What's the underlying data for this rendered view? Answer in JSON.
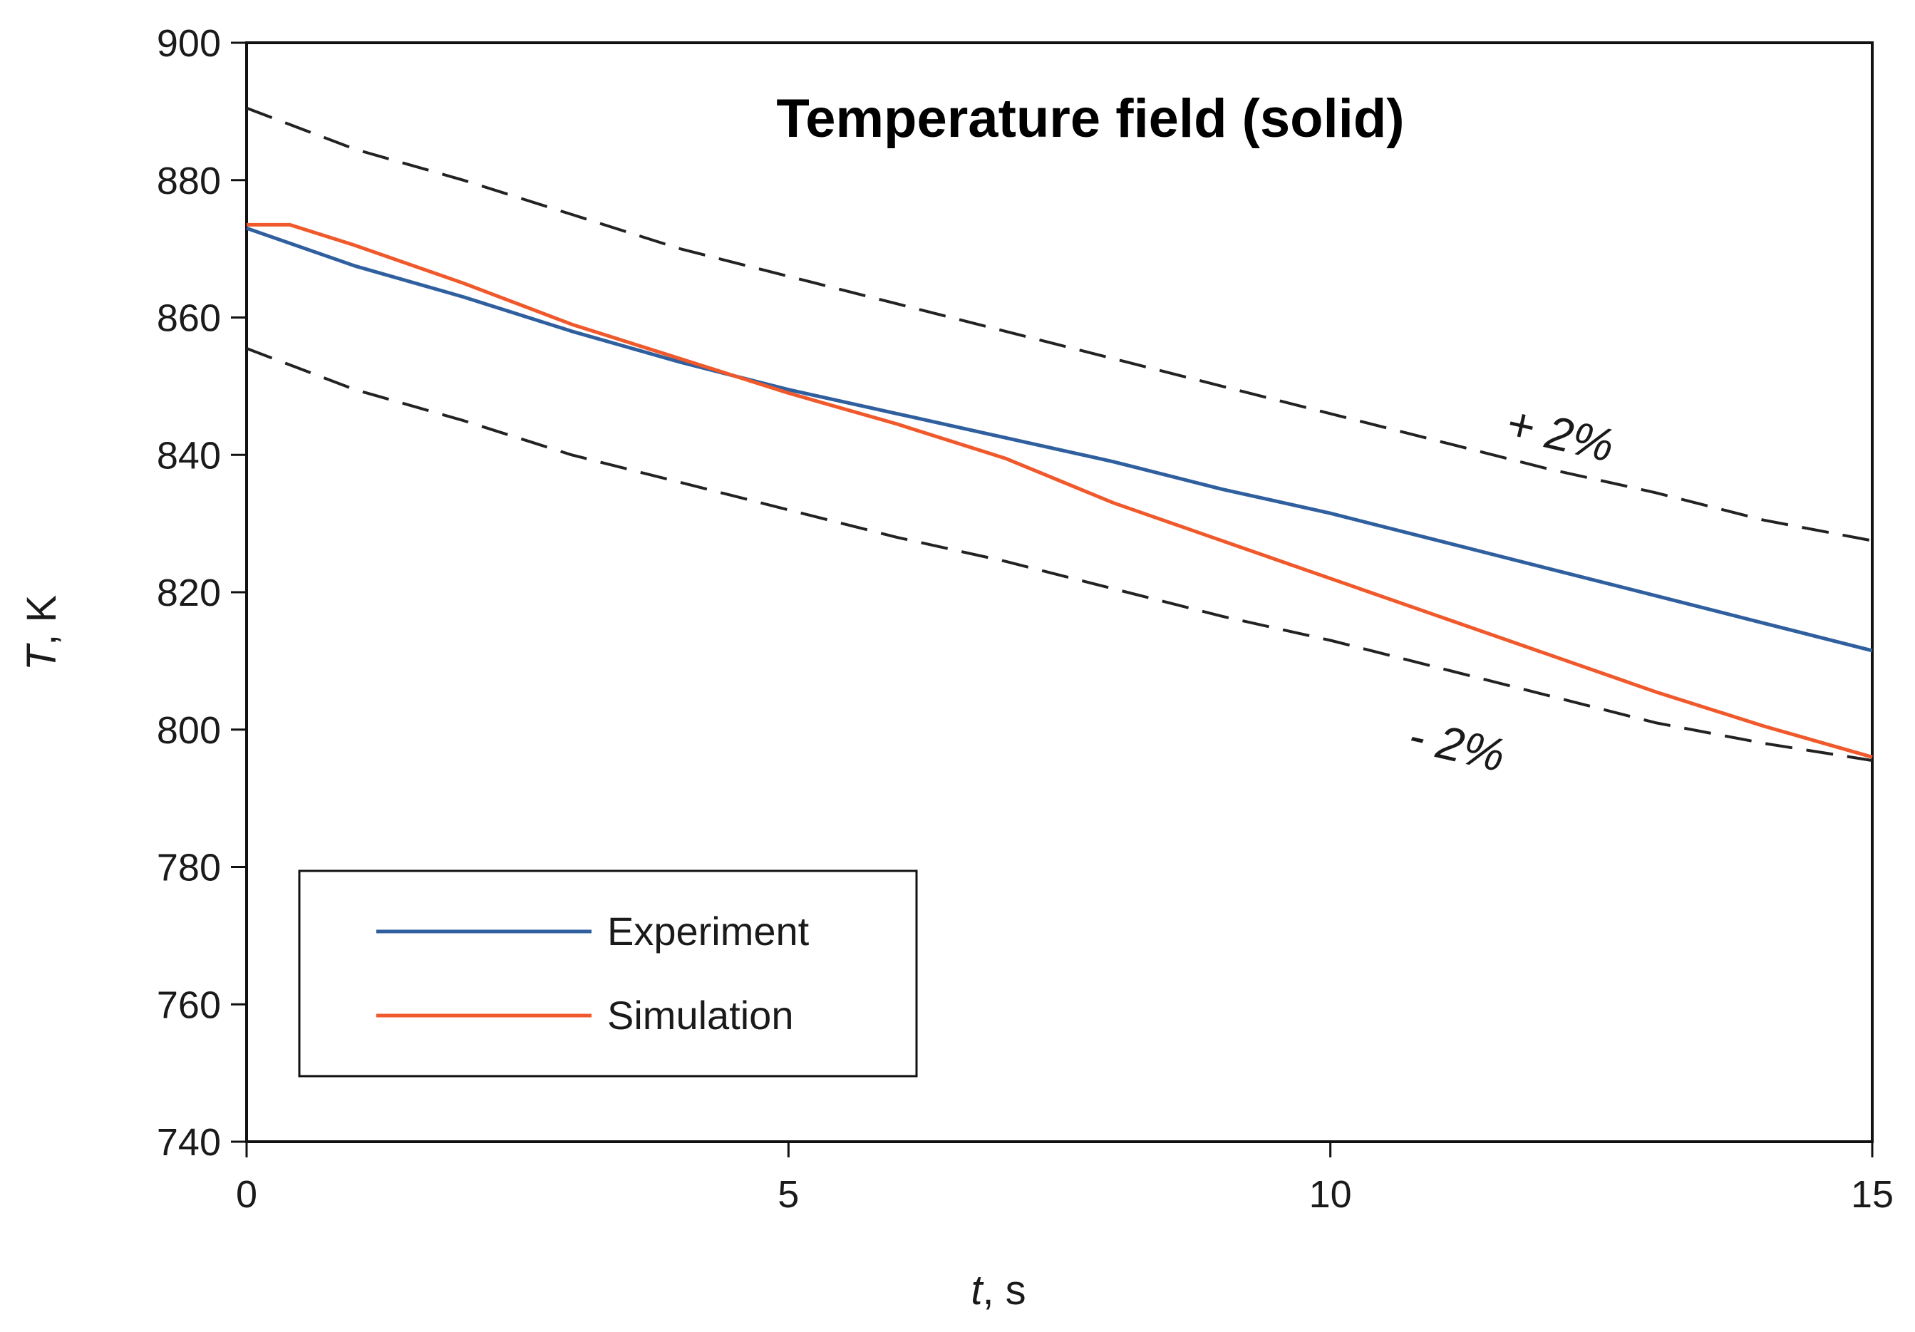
{
  "chart_data": {
    "type": "line",
    "title": "Temperature field (solid)",
    "xlabel_var": "t",
    "xlabel_unit": ", s",
    "ylabel_var": "T",
    "ylabel_unit": ", K",
    "xlim": [
      0,
      15
    ],
    "ylim": [
      740,
      900
    ],
    "xticks": [
      0,
      5,
      10,
      15
    ],
    "yticks": [
      740,
      760,
      780,
      800,
      820,
      840,
      860,
      880,
      900
    ],
    "grid": false,
    "legend_position": "bottom-left",
    "series": [
      {
        "name": "Experiment",
        "color": "#2f5f9e",
        "style": "solid",
        "x": [
          0,
          1,
          2,
          3,
          4,
          5,
          6,
          7,
          8,
          9,
          10,
          11,
          12,
          13,
          14,
          15
        ],
        "y": [
          873,
          867.5,
          863,
          858,
          853.5,
          849.5,
          846,
          842.5,
          839,
          835,
          831.5,
          827.5,
          823.5,
          819.5,
          815.5,
          811.5
        ]
      },
      {
        "name": "Simulation",
        "color": "#f0592b",
        "style": "solid",
        "x": [
          0,
          0.4,
          1,
          2,
          3,
          4,
          5,
          6,
          7,
          8,
          9,
          10,
          11,
          12,
          13,
          14,
          15
        ],
        "y": [
          873.5,
          873.5,
          870.5,
          865,
          859,
          854,
          849,
          844.5,
          839.5,
          833,
          827.5,
          822,
          816.5,
          811,
          805.5,
          800.5,
          796
        ]
      },
      {
        "name": "+2%",
        "color": "#222222",
        "style": "dashed",
        "x": [
          0,
          1,
          2,
          3,
          4,
          5,
          6,
          7,
          8,
          9,
          10,
          11,
          12,
          13,
          14,
          15
        ],
        "y": [
          890.5,
          884.5,
          880,
          875,
          870,
          866,
          862,
          858,
          854,
          850,
          846,
          842,
          838,
          834.5,
          830.5,
          827.5
        ]
      },
      {
        "name": "-2%",
        "color": "#222222",
        "style": "dashed",
        "x": [
          0,
          1,
          2,
          3,
          4,
          5,
          6,
          7,
          8,
          9,
          10,
          11,
          12,
          13,
          14,
          15
        ],
        "y": [
          855.5,
          849.5,
          845,
          840,
          836,
          832,
          828,
          824.5,
          820.5,
          816.5,
          813,
          809,
          805,
          801,
          798,
          795.5
        ]
      }
    ],
    "annotations": [
      {
        "text": "+ 2%",
        "x": 11.6,
        "y": 842.5
      },
      {
        "text": "- 2%",
        "x": 10.7,
        "y": 797
      }
    ],
    "legend": [
      "Experiment",
      "Simulation"
    ]
  }
}
